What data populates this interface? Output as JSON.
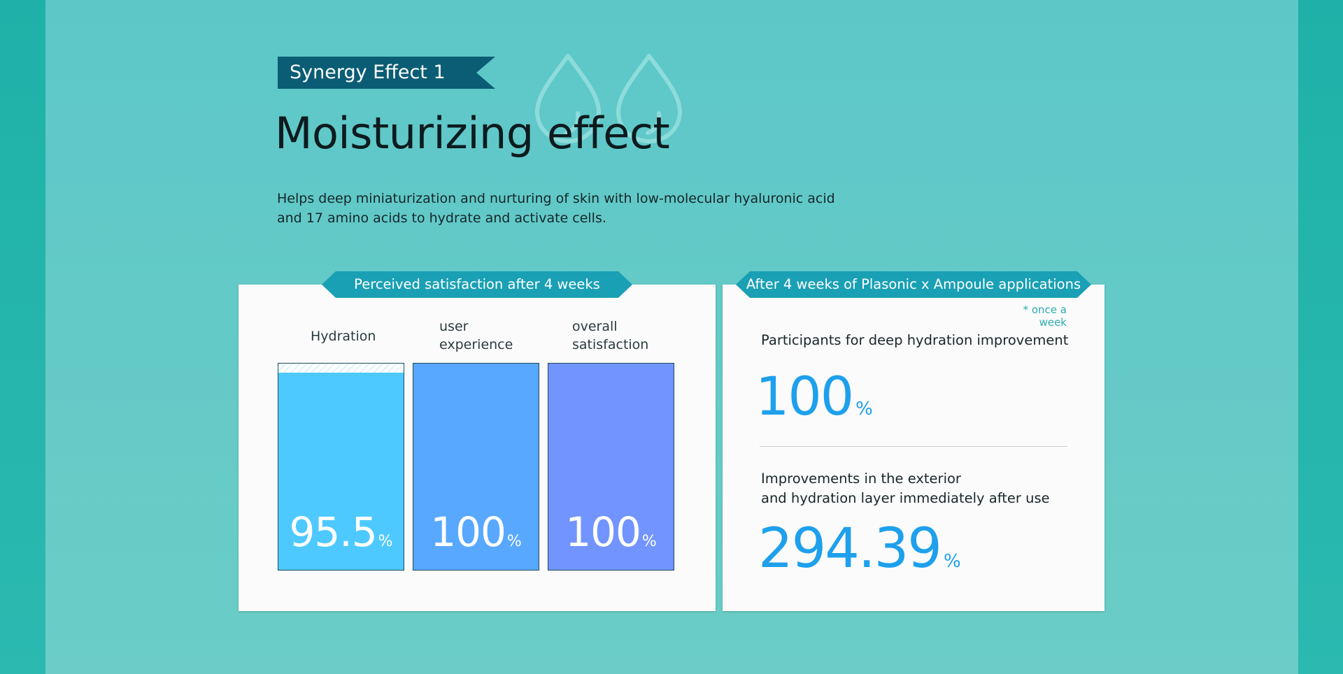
{
  "header": {
    "badge_label": "Synergy Effect 1",
    "title": "Moisturizing effect",
    "description": "Helps deep miniaturization and nurturing of skin with low-molecular hyaluronic acid and 17 amino acids to hydrate and activate cells."
  },
  "colors": {
    "badge": "#0a5d74",
    "tab": "#1aa0b4",
    "hydration": "#4ec9ff",
    "user_experience": "#58a8ff",
    "overall_satisfaction": "#7294ff",
    "stat_value": "#1ea0ec"
  },
  "satisfaction_panel": {
    "tab_label": "Perceived satisfaction after 4 weeks",
    "unit": "%",
    "items": [
      {
        "label": "Hydration",
        "value": "95.5",
        "level": 95.5,
        "color": "#4ec9ff"
      },
      {
        "label": "user\nexperience",
        "value": "100",
        "level": 100,
        "color": "#58a8ff"
      },
      {
        "label": "overall\nsatisfaction",
        "value": "100",
        "level": 100,
        "color": "#7294ff"
      }
    ]
  },
  "application_panel": {
    "tab_label": "After 4 weeks of Plasonic x Ampoule applications",
    "note": "* once a week",
    "stats": [
      {
        "label": "Participants for deep hydration improvement",
        "value": "100",
        "unit": "%"
      },
      {
        "label": "Improvements in the exterior\nand hydration layer immediately after use",
        "value": "294.39",
        "unit": "%"
      }
    ]
  }
}
